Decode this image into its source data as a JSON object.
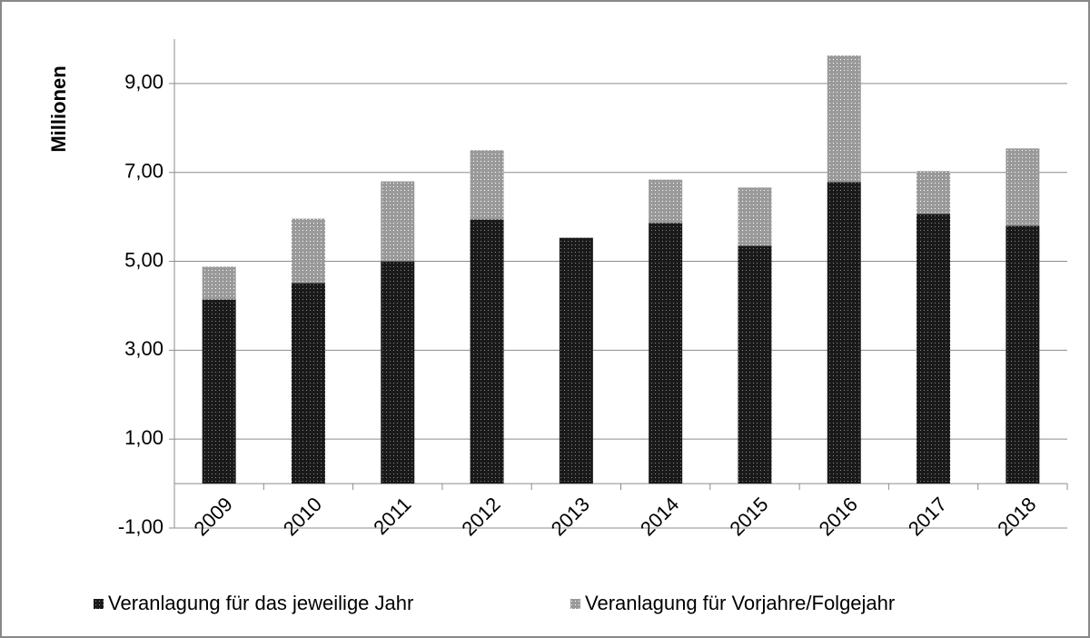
{
  "chart_data": {
    "type": "stacked_bar",
    "y_label": "Millionen",
    "categories": [
      "2009",
      "2010",
      "2011",
      "2012",
      "2013",
      "2014",
      "2015",
      "2016",
      "2017",
      "2018"
    ],
    "series": [
      {
        "name": "Veranlagung für das jeweilige Jahr",
        "color": "#1a1a1a",
        "values": [
          4.14,
          4.51,
          5.0,
          5.94,
          5.53,
          5.86,
          5.35,
          6.78,
          6.07,
          5.8
        ]
      },
      {
        "name": "Veranlagung für Vorjahre/Folgejahr",
        "color": "#9a9a9a",
        "values": [
          0.74,
          1.45,
          1.8,
          1.56,
          0,
          0.98,
          1.31,
          2.85,
          0.96,
          1.74
        ]
      }
    ],
    "ylim": [
      -1,
      10
    ],
    "yticks": [
      {
        "value": -1,
        "label": "-1,00"
      },
      {
        "value": 1,
        "label": "1,00"
      },
      {
        "value": 3,
        "label": "3,00"
      },
      {
        "value": 5,
        "label": "5,00"
      },
      {
        "value": 7,
        "label": "7,00"
      },
      {
        "value": 9,
        "label": "9,00"
      }
    ],
    "grid": true,
    "legend": "bottom"
  }
}
